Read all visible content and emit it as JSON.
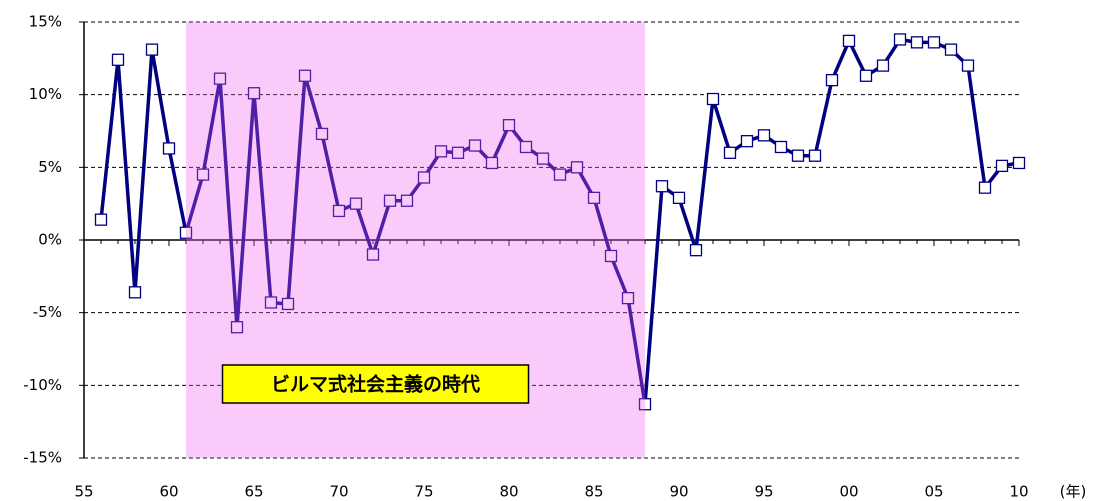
{
  "chart_data": {
    "type": "line",
    "x": [
      1956,
      1957,
      1958,
      1959,
      1960,
      1961,
      1962,
      1963,
      1964,
      1965,
      1966,
      1967,
      1968,
      1969,
      1970,
      1971,
      1972,
      1973,
      1974,
      1975,
      1976,
      1977,
      1978,
      1979,
      1980,
      1981,
      1982,
      1983,
      1984,
      1985,
      1986,
      1987,
      1988,
      1989,
      1990,
      1991,
      1992,
      1993,
      1994,
      1995,
      1996,
      1997,
      1998,
      1999,
      2000,
      2001,
      2002,
      2003,
      2004,
      2005,
      2006,
      2007,
      2008,
      2009,
      2010
    ],
    "series": [
      {
        "color": "#000080",
        "values": [
          1.4,
          12.4,
          -3.6,
          13.1,
          6.3,
          0.5,
          4.5,
          11.1,
          -6.0,
          10.1,
          -4.3,
          -4.4,
          11.3,
          7.3,
          2.0,
          2.5,
          -1.0,
          2.7,
          2.7,
          4.3,
          6.1,
          6.0,
          6.5,
          5.3,
          7.9,
          6.4,
          5.6,
          4.5,
          5.0,
          2.9,
          -1.1,
          -4.0,
          -11.3,
          3.7,
          2.9,
          -0.7,
          9.7,
          6.0,
          6.8,
          7.2,
          6.4,
          5.8,
          5.8,
          11.0,
          13.7,
          11.3,
          12.0,
          13.8,
          13.6,
          13.6,
          13.1,
          12.0,
          3.6,
          5.1,
          5.3
        ]
      }
    ],
    "xlim": [
      1955,
      2010
    ],
    "xticks": [
      {
        "value": 1955,
        "label": "55"
      },
      {
        "value": 1960,
        "label": "60"
      },
      {
        "value": 1965,
        "label": "65"
      },
      {
        "value": 1970,
        "label": "70"
      },
      {
        "value": 1975,
        "label": "75"
      },
      {
        "value": 1980,
        "label": "80"
      },
      {
        "value": 1985,
        "label": "85"
      },
      {
        "value": 1990,
        "label": "90"
      },
      {
        "value": 1995,
        "label": "95"
      },
      {
        "value": 2000,
        "label": "00"
      },
      {
        "value": 2005,
        "label": "05"
      },
      {
        "value": 2010,
        "label": "10"
      }
    ],
    "x_unit": "(年)",
    "ylim": [
      -15,
      15
    ],
    "yticks": [
      {
        "value": -15,
        "label": "-15%"
      },
      {
        "value": -10,
        "label": "-10%"
      },
      {
        "value": -5,
        "label": "-5%"
      },
      {
        "value": 0,
        "label": "0%"
      },
      {
        "value": 5,
        "label": "5%"
      },
      {
        "value": 10,
        "label": "10%"
      },
      {
        "value": 15,
        "label": "15%"
      }
    ],
    "grid": true,
    "shaded_range": [
      1961,
      1988
    ],
    "shaded_color": "#f060f0",
    "annotation": "ビルマ式社会主義の時代"
  }
}
